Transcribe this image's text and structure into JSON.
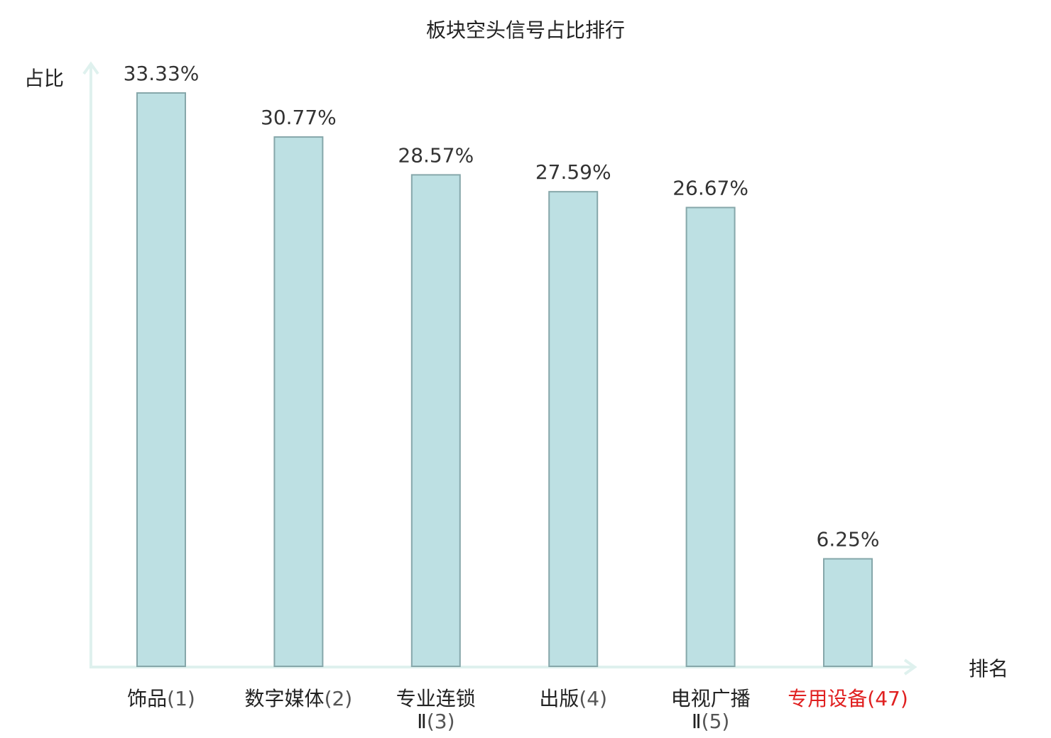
{
  "chart_data": {
    "type": "bar",
    "title": "板块空头信号占比排行",
    "ylabel": "占比",
    "xlabel": "排名",
    "ylim": [
      0,
      35
    ],
    "grid": false,
    "categories": [
      {
        "name": "饰品",
        "rank": "(1)",
        "value": 33.33,
        "label": "33.33%",
        "highlight": false
      },
      {
        "name": "数字媒体",
        "rank": "(2)",
        "value": 30.77,
        "label": "30.77%",
        "highlight": false
      },
      {
        "name": "专业连锁",
        "name2": "Ⅱ",
        "rank": "(3)",
        "value": 28.57,
        "label": "28.57%",
        "highlight": false
      },
      {
        "name": "出版",
        "rank": "(4)",
        "value": 27.59,
        "label": "27.59%",
        "highlight": false
      },
      {
        "name": "电视广播",
        "name2": "Ⅱ",
        "rank": "(5)",
        "value": 26.67,
        "label": "26.67%",
        "highlight": false
      },
      {
        "name": "专用设备",
        "rank": "(47)",
        "value": 6.25,
        "label": "6.25%",
        "highlight": true
      }
    ],
    "colors": {
      "bar_fill": "#bde0e3",
      "bar_stroke": "#86a7aa",
      "axis": "#dff1ee",
      "text": "#222222",
      "label_text": "#333333",
      "rank_text": "#555555",
      "highlight": "#e02020"
    }
  }
}
